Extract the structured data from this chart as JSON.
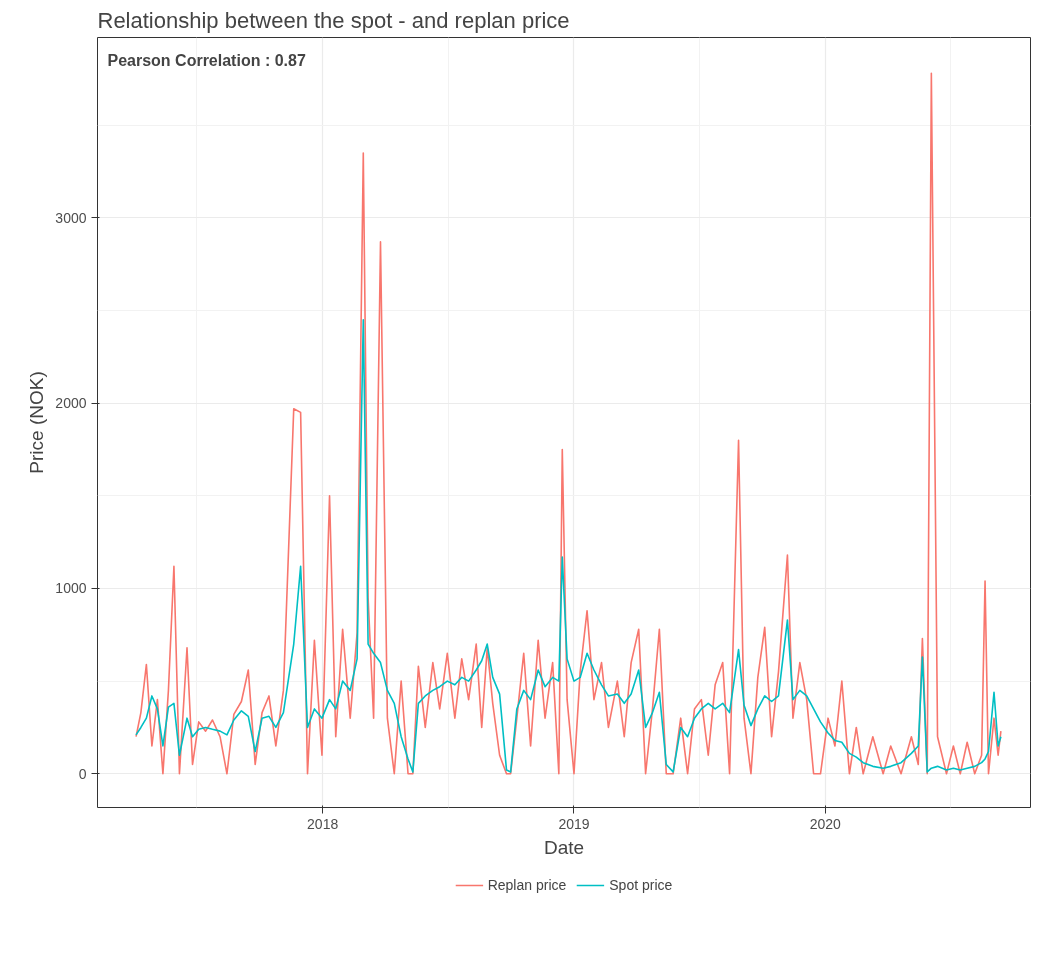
{
  "chart_data": {
    "type": "line",
    "title": "Relationship between the spot - and replan price",
    "xlabel": "Date",
    "ylabel": "Price (NOK)",
    "annotations": [
      "Pearson Correlation :  0.87"
    ],
    "x": [
      "2017-04-05",
      "2017-04-12",
      "2017-04-20",
      "2017-04-28",
      "2017-05-06",
      "2017-05-14",
      "2017-05-22",
      "2017-05-30",
      "2017-06-07",
      "2017-06-18",
      "2017-06-26",
      "2017-07-05",
      "2017-07-15",
      "2017-07-25",
      "2017-08-05",
      "2017-08-15",
      "2017-08-25",
      "2017-09-05",
      "2017-09-15",
      "2017-09-25",
      "2017-10-05",
      "2017-10-15",
      "2017-10-25",
      "2017-11-05",
      "2017-11-20",
      "2017-11-30",
      "2017-12-10",
      "2017-12-20",
      "2017-12-31",
      "2018-01-11",
      "2018-01-20",
      "2018-01-30",
      "2018-02-10",
      "2018-02-20",
      "2018-03-01",
      "2018-03-08",
      "2018-03-16",
      "2018-03-26",
      "2018-04-05",
      "2018-04-15",
      "2018-04-25",
      "2018-05-05",
      "2018-05-12",
      "2018-05-20",
      "2018-05-30",
      "2018-06-10",
      "2018-06-20",
      "2018-07-01",
      "2018-07-12",
      "2018-07-22",
      "2018-08-01",
      "2018-08-12",
      "2018-08-20",
      "2018-08-28",
      "2018-09-05",
      "2018-09-15",
      "2018-09-25",
      "2018-10-01",
      "2018-10-10",
      "2018-10-20",
      "2018-10-30",
      "2018-11-10",
      "2018-11-20",
      "2018-12-01",
      "2018-12-10",
      "2018-12-15",
      "2018-12-22",
      "2019-01-01",
      "2019-01-10",
      "2019-01-20",
      "2019-01-30",
      "2019-02-10",
      "2019-02-20",
      "2019-03-05",
      "2019-03-15",
      "2019-03-25",
      "2019-04-05",
      "2019-04-15",
      "2019-04-25",
      "2019-05-05",
      "2019-05-15",
      "2019-05-25",
      "2019-06-05",
      "2019-06-15",
      "2019-06-25",
      "2019-07-05",
      "2019-07-15",
      "2019-07-25",
      "2019-08-05",
      "2019-08-15",
      "2019-08-28",
      "2019-09-05",
      "2019-09-15",
      "2019-09-25",
      "2019-10-05",
      "2019-10-15",
      "2019-10-25",
      "2019-11-07",
      "2019-11-15",
      "2019-11-25",
      "2019-12-05",
      "2019-12-15",
      "2019-12-25",
      "2020-01-05",
      "2020-01-15",
      "2020-01-25",
      "2020-02-05",
      "2020-02-15",
      "2020-02-25",
      "2020-03-10",
      "2020-03-25",
      "2020-04-05",
      "2020-04-20",
      "2020-05-05",
      "2020-05-15",
      "2020-05-21",
      "2020-05-28",
      "2020-06-03",
      "2020-06-12",
      "2020-06-25",
      "2020-07-05",
      "2020-07-15",
      "2020-07-25",
      "2020-08-05",
      "2020-08-15",
      "2020-08-20",
      "2020-08-25",
      "2020-09-02",
      "2020-09-08",
      "2020-09-12"
    ],
    "series": [
      {
        "name": "Replan price",
        "color": "#f8766d",
        "values": [
          200,
          330,
          590,
          150,
          400,
          0,
          450,
          1120,
          0,
          680,
          50,
          280,
          230,
          290,
          200,
          0,
          320,
          390,
          560,
          50,
          330,
          420,
          150,
          450,
          1970,
          1950,
          0,
          720,
          100,
          1500,
          200,
          780,
          300,
          760,
          3350,
          950,
          300,
          2870,
          300,
          0,
          500,
          0,
          0,
          580,
          250,
          600,
          350,
          650,
          300,
          620,
          400,
          700,
          250,
          680,
          380,
          100,
          0,
          0,
          300,
          650,
          150,
          720,
          300,
          600,
          0,
          1750,
          400,
          0,
          550,
          880,
          400,
          600,
          250,
          500,
          200,
          600,
          780,
          0,
          350,
          780,
          0,
          0,
          300,
          0,
          350,
          400,
          100,
          480,
          600,
          0,
          1800,
          300,
          0,
          520,
          790,
          200,
          550,
          1180,
          300,
          600,
          400,
          0,
          0,
          300,
          150,
          500,
          0,
          250,
          0,
          200,
          0,
          150,
          0,
          200,
          50,
          730,
          0,
          3780,
          200,
          0,
          150,
          0,
          170,
          0,
          100,
          1040,
          0,
          300,
          100,
          230
        ]
      },
      {
        "name": "Spot price",
        "color": "#00bfc4",
        "values": [
          210,
          250,
          300,
          420,
          350,
          150,
          360,
          380,
          100,
          300,
          200,
          240,
          250,
          240,
          230,
          210,
          290,
          340,
          310,
          120,
          300,
          310,
          250,
          330,
          700,
          1120,
          250,
          350,
          300,
          400,
          350,
          500,
          450,
          620,
          2450,
          700,
          650,
          600,
          450,
          380,
          200,
          80,
          10,
          380,
          420,
          450,
          470,
          500,
          480,
          520,
          500,
          560,
          610,
          700,
          520,
          430,
          20,
          10,
          350,
          450,
          400,
          560,
          470,
          520,
          500,
          1170,
          620,
          500,
          520,
          650,
          560,
          480,
          420,
          430,
          380,
          430,
          560,
          250,
          330,
          440,
          50,
          10,
          250,
          200,
          300,
          350,
          380,
          350,
          380,
          330,
          670,
          370,
          260,
          350,
          420,
          390,
          420,
          830,
          400,
          450,
          420,
          350,
          280,
          220,
          180,
          170,
          110,
          90,
          60,
          40,
          30,
          40,
          60,
          110,
          150,
          630,
          10,
          30,
          40,
          20,
          30,
          20,
          30,
          40,
          60,
          80,
          120,
          440,
          150,
          200
        ]
      }
    ],
    "xlim": [
      "2017-02-08",
      "2020-10-25"
    ],
    "xticks": [
      "2018",
      "2019",
      "2020"
    ],
    "ylim": [
      -182,
      3973
    ],
    "yticks": [
      0,
      1000,
      2000,
      3000
    ],
    "grid": true,
    "legend": "bottom",
    "line_style": "solid",
    "marker": "none"
  }
}
